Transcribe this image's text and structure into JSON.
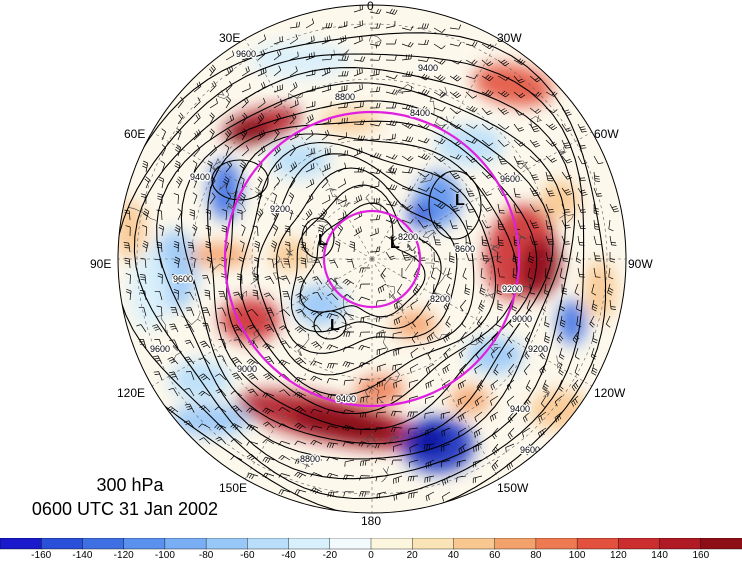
{
  "map": {
    "projection": "north-polar-stereographic",
    "level_label": "300 hPa",
    "time_label": "0600 UTC 31 Jan 2002",
    "longitude_labels": {
      "lon_0": "0",
      "lon_30w": "30W",
      "lon_60w": "60W",
      "lon_90w": "90W",
      "lon_120w": "120W",
      "lon_150w": "150W",
      "lon_180": "180",
      "lon_150e": "150E",
      "lon_120e": "120E",
      "lon_90e": "90E",
      "lon_60e": "60E",
      "lon_30e": "30E"
    },
    "contour_labels": [
      "9600",
      "9400",
      "9200",
      "9000",
      "8800",
      "8600",
      "8400",
      "8200"
    ],
    "low_marker": "L",
    "ring_color": "#e020e0"
  },
  "colorbar": {
    "ticks": [
      "-160",
      "-140",
      "-120",
      "-100",
      "-80",
      "-60",
      "-40",
      "-20",
      "0",
      "20",
      "40",
      "60",
      "80",
      "100",
      "120",
      "140",
      "160"
    ],
    "colors": [
      "#1a1acc",
      "#2a4fd8",
      "#3e70e4",
      "#5a90ee",
      "#79aef4",
      "#98c8f8",
      "#b8defb",
      "#d8f0fc",
      "#f2fafd",
      "#fdf6df",
      "#fbe3b8",
      "#f8c890",
      "#f4a26c",
      "#ee7a52",
      "#e2513e",
      "#cc2e30",
      "#b01a24",
      "#8e0e18"
    ]
  }
}
